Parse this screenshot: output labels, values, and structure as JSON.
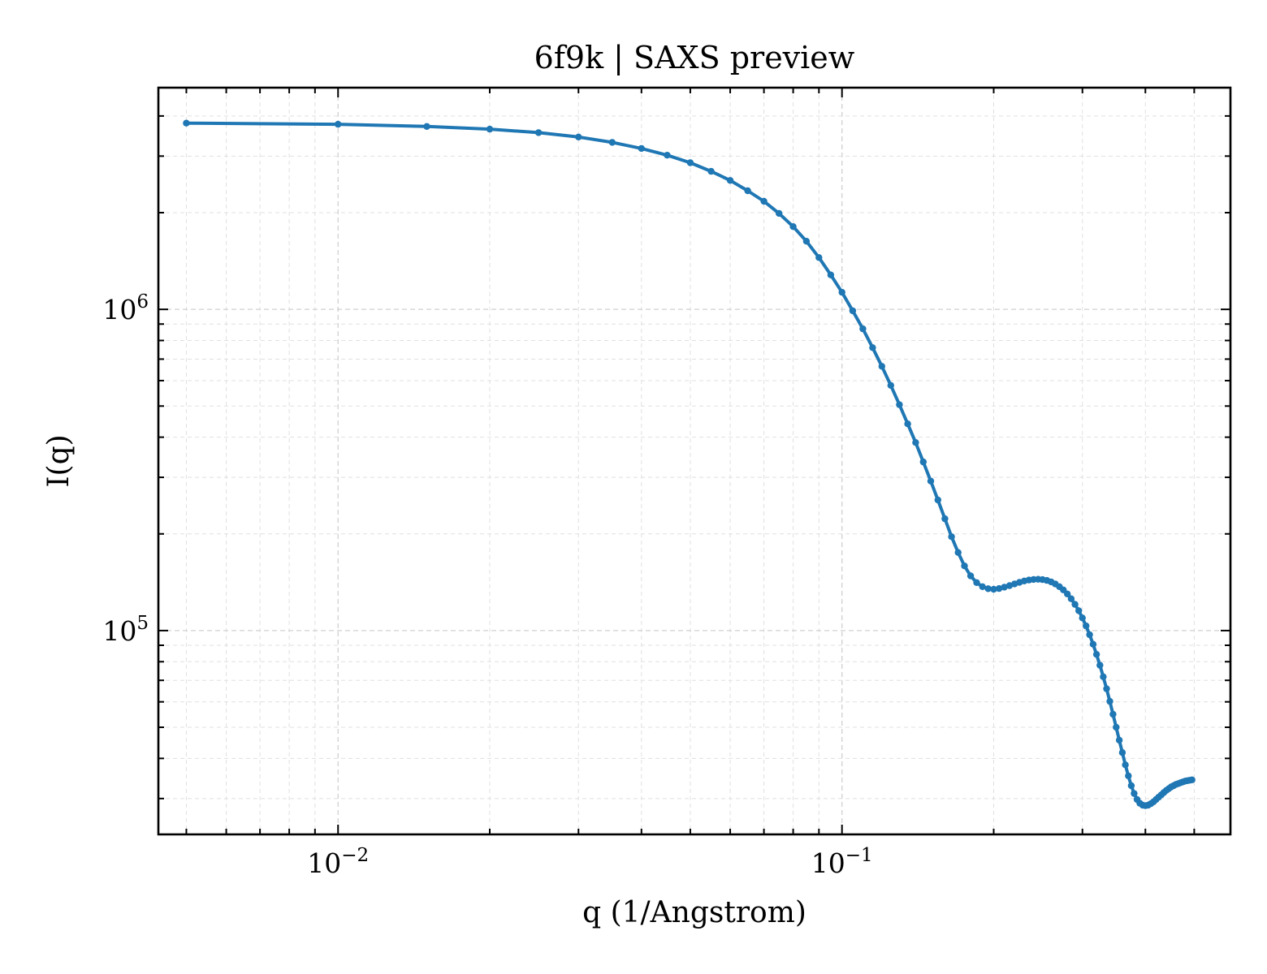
{
  "chart_data": {
    "type": "line",
    "title": "6f9k | SAXS preview",
    "xlabel": "q (1/Angstrom)",
    "ylabel": "I(q)",
    "xscale": "log",
    "yscale": "log",
    "xlim": [
      0.0044,
      0.59
    ],
    "ylim": [
      23200,
      4900000
    ],
    "grid": true,
    "marker": "dot",
    "line_color": "#1f77b4",
    "x_ticks": [
      {
        "value": 0.01,
        "base": "10",
        "exp": "−2"
      },
      {
        "value": 0.1,
        "base": "10",
        "exp": "−1"
      }
    ],
    "y_ticks": [
      {
        "value": 100000,
        "base": "10",
        "exp": "5"
      },
      {
        "value": 1000000,
        "base": "10",
        "exp": "6"
      }
    ],
    "series": [
      {
        "x": [
          0.005,
          0.01,
          0.015,
          0.02,
          0.025,
          0.03,
          0.035,
          0.04,
          0.045,
          0.05,
          0.055,
          0.06,
          0.065,
          0.07,
          0.075,
          0.08,
          0.085,
          0.09,
          0.095,
          0.1,
          0.105,
          0.11,
          0.115,
          0.12,
          0.125,
          0.13,
          0.135,
          0.14,
          0.145,
          0.15,
          0.155,
          0.16,
          0.165,
          0.17,
          0.175,
          0.18,
          0.185,
          0.19,
          0.195,
          0.2,
          0.205,
          0.21,
          0.215,
          0.22,
          0.225,
          0.23,
          0.235,
          0.24,
          0.245,
          0.25,
          0.255,
          0.26,
          0.265,
          0.27,
          0.275,
          0.28,
          0.285,
          0.29,
          0.295,
          0.3,
          0.305,
          0.31,
          0.315,
          0.32,
          0.325,
          0.33,
          0.335,
          0.34,
          0.345,
          0.35,
          0.355,
          0.36,
          0.365,
          0.37,
          0.375,
          0.38,
          0.385,
          0.39,
          0.395,
          0.4,
          0.405,
          0.41,
          0.415,
          0.42,
          0.425,
          0.43,
          0.435,
          0.44,
          0.445,
          0.45,
          0.455,
          0.46,
          0.465,
          0.47,
          0.475,
          0.48,
          0.485,
          0.49,
          0.495
        ],
        "y": [
          3800000,
          3770000,
          3710000,
          3640000,
          3550000,
          3440000,
          3310000,
          3170000,
          3020000,
          2860000,
          2690000,
          2520000,
          2340000,
          2170000,
          1990000,
          1810000,
          1630000,
          1450000,
          1280000,
          1130000,
          990000,
          870000,
          760000,
          665000,
          580000,
          505000,
          440000,
          385000,
          335000,
          292000,
          255000,
          223000,
          196000,
          175000,
          159000,
          148000,
          141000,
          137000,
          135000,
          134500,
          135200,
          136500,
          138000,
          139700,
          141300,
          142700,
          143700,
          144300,
          144400,
          144100,
          143300,
          141800,
          139700,
          137000,
          133800,
          130000,
          125600,
          120700,
          115300,
          109500,
          103400,
          97100,
          90700,
          84300,
          78000,
          71800,
          65900,
          60200,
          54900,
          50000,
          45600,
          41700,
          38200,
          35300,
          32900,
          31100,
          29800,
          29000,
          28600,
          28500,
          28600,
          28900,
          29300,
          29800,
          30300,
          30800,
          31300,
          31800,
          32200,
          32600,
          32900,
          33200,
          33400,
          33600,
          33800,
          34000,
          34100,
          34200,
          34300
        ]
      }
    ]
  }
}
